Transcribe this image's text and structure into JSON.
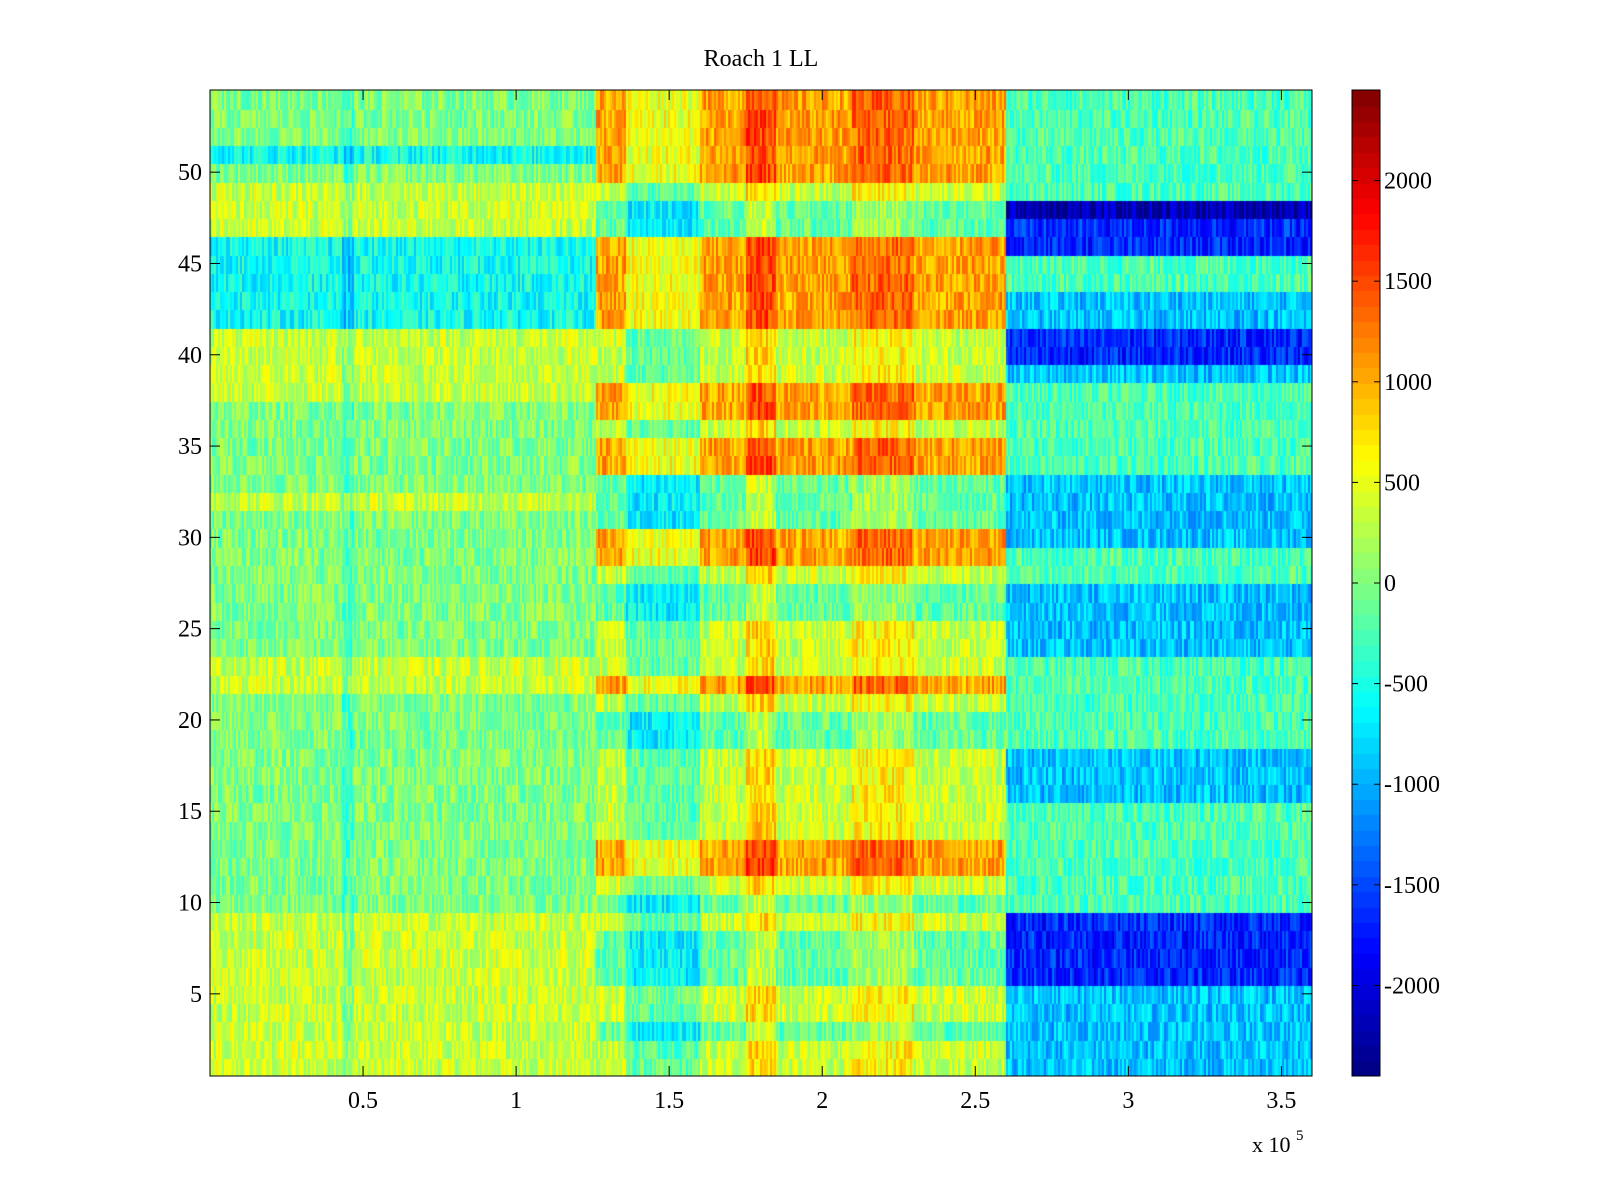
{
  "chart_data": {
    "type": "heatmap",
    "title": "Roach 1 LL",
    "xlabel": "",
    "ylabel": "",
    "x_multiplier_label": "x 10",
    "x_multiplier_exponent": "5",
    "xlim": [
      0,
      3.6
    ],
    "ylim": [
      0.5,
      54.5
    ],
    "xticks": [
      0.5,
      1,
      1.5,
      2,
      2.5,
      3,
      3.5
    ],
    "xtick_labels": [
      "0.5",
      "1",
      "1.5",
      "2",
      "2.5",
      "3",
      "3.5"
    ],
    "yticks": [
      5,
      10,
      15,
      20,
      25,
      30,
      35,
      40,
      45,
      50
    ],
    "ytick_labels": [
      "5",
      "10",
      "15",
      "20",
      "25",
      "30",
      "35",
      "40",
      "45",
      "50"
    ],
    "colormap": "jet",
    "clim": [
      -2450,
      2450
    ],
    "colorbar_ticks": [
      2000,
      1500,
      1000,
      500,
      0,
      -500,
      -1000,
      -1500,
      -2000
    ],
    "colorbar_tick_labels": [
      "2000",
      "1500",
      "1000",
      "500",
      "0",
      "-500",
      "-1000",
      "-1500",
      "-2000"
    ],
    "rows": 54,
    "row_height_note": "rows indexed 1..54 bottom to top",
    "segments_x_1e5": [
      0,
      1.26,
      2.6,
      3.6
    ],
    "segment_means": {
      "segment_1": {
        "range": [
          0,
          1.26
        ],
        "default": 0,
        "high_rows": [
          1,
          2,
          3,
          4,
          5,
          6,
          7,
          8,
          9,
          22,
          23,
          32,
          38,
          39,
          40,
          41,
          47,
          48,
          49
        ],
        "high_value": 350,
        "low_rows": [
          42,
          43,
          44,
          45,
          46,
          51
        ],
        "low_value": -550
      },
      "segment_2": {
        "range": [
          1.26,
          2.6
        ],
        "default": 350,
        "hot_rows": [
          12,
          13,
          22,
          29,
          30,
          34,
          35,
          37,
          38,
          42,
          43,
          44,
          45,
          46,
          50,
          51,
          52,
          53,
          54
        ],
        "hot_value": 1050,
        "cool_rows": [
          3,
          6,
          7,
          8,
          10,
          19,
          20,
          26,
          27,
          31,
          32,
          33,
          47,
          48
        ],
        "cool_value": -150
      },
      "segment_3": {
        "range": [
          2.6,
          3.6
        ],
        "default": -250,
        "blue_rows": [
          6,
          7,
          8,
          9,
          40,
          41,
          46,
          47,
          48
        ],
        "blue_value": -1650,
        "darkest_rows": [
          48
        ],
        "darkest_value": -2200,
        "medium_rows": [
          1,
          2,
          3,
          4,
          5,
          16,
          17,
          18,
          24,
          25,
          26,
          27,
          30,
          31,
          32,
          33,
          39,
          42,
          43
        ],
        "medium_value": -900
      }
    }
  }
}
